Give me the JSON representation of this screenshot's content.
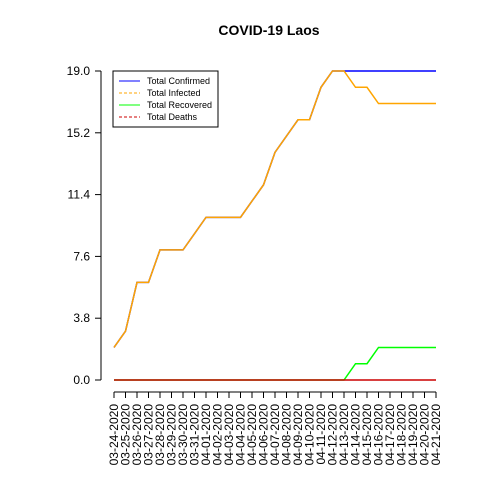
{
  "chart_data": {
    "type": "line",
    "title": "COVID-19 Laos",
    "xlabel": "",
    "ylabel": "",
    "ylim": [
      0,
      19
    ],
    "yticks": [
      "0.0",
      "3.8",
      "7.6",
      "11.4",
      "15.2",
      "19.0"
    ],
    "grid": false,
    "legend_position": "top-left",
    "x": [
      "03-24-2020",
      "03-25-2020",
      "03-26-2020",
      "03-27-2020",
      "03-28-2020",
      "03-29-2020",
      "03-30-2020",
      "03-31-2020",
      "04-01-2020",
      "04-02-2020",
      "04-03-2020",
      "04-04-2020",
      "04-05-2020",
      "04-06-2020",
      "04-07-2020",
      "04-08-2020",
      "04-09-2020",
      "04-10-2020",
      "04-11-2020",
      "04-12-2020",
      "04-13-2020",
      "04-14-2020",
      "04-15-2020",
      "04-16-2020",
      "04-17-2020",
      "04-18-2020",
      "04-19-2020",
      "04-20-2020",
      "04-21-2020"
    ],
    "series": [
      {
        "name": "Total Confirmed",
        "color": "#0000ff",
        "dash": "solid",
        "values": [
          2,
          3,
          6,
          6,
          8,
          8,
          8,
          9,
          10,
          10,
          10,
          10,
          11,
          12,
          14,
          15,
          16,
          16,
          18,
          19,
          19,
          19,
          19,
          19,
          19,
          19,
          19,
          19,
          19
        ]
      },
      {
        "name": "Total Infected",
        "color": "#ffa500",
        "dash": "dashed",
        "values": [
          2,
          3,
          6,
          6,
          8,
          8,
          8,
          9,
          10,
          10,
          10,
          10,
          11,
          12,
          14,
          15,
          16,
          16,
          18,
          19,
          19,
          18,
          18,
          17,
          17,
          17,
          17,
          17,
          17
        ]
      },
      {
        "name": "Total Recovered",
        "color": "#00ff00",
        "dash": "solid",
        "values": [
          0,
          0,
          0,
          0,
          0,
          0,
          0,
          0,
          0,
          0,
          0,
          0,
          0,
          0,
          0,
          0,
          0,
          0,
          0,
          0,
          0,
          1,
          1,
          2,
          2,
          2,
          2,
          2,
          2
        ]
      },
      {
        "name": "Total Deaths",
        "color": "#cc0000",
        "dash": "dashed",
        "values": [
          0,
          0,
          0,
          0,
          0,
          0,
          0,
          0,
          0,
          0,
          0,
          0,
          0,
          0,
          0,
          0,
          0,
          0,
          0,
          0,
          0,
          0,
          0,
          0,
          0,
          0,
          0,
          0,
          0
        ]
      }
    ]
  }
}
